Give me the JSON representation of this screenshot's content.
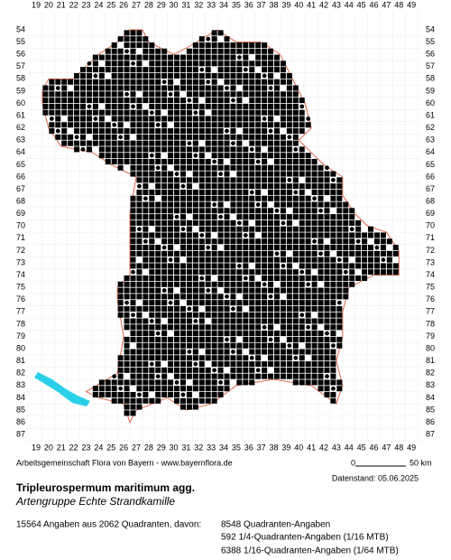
{
  "map": {
    "columns": [
      19,
      20,
      21,
      22,
      23,
      24,
      25,
      26,
      27,
      28,
      29,
      30,
      31,
      32,
      33,
      34,
      35,
      36,
      37,
      38,
      39,
      40,
      41,
      42,
      43,
      44,
      45,
      46,
      47,
      48,
      49
    ],
    "rows": [
      54,
      55,
      56,
      57,
      58,
      59,
      60,
      61,
      62,
      63,
      64,
      65,
      66,
      67,
      68,
      69,
      70,
      71,
      72,
      73,
      74,
      75,
      76,
      77,
      78,
      79,
      80,
      81,
      82,
      83,
      84,
      85,
      86,
      87
    ]
  },
  "footer": {
    "credit": "Arbeitsgemeinschaft Flora von Bayern - www.bayernflora.de",
    "scale_start": "0",
    "scale_end": "50 km",
    "date": "Datenstand: 05.06.2025",
    "title": "Tripleurospermum maritimum agg.",
    "subtitle": "Artengruppe Echte Strandkamille",
    "summary": "15564 Angaben aus 2062 Quadranten, davon:",
    "counts": [
      "8548 Quadranten-Angaben",
      "592 1/4-Quadranten-Angaben (1/16 MTB)",
      "6388 1/16-Quadranten-Angaben (1/64 MTB)"
    ]
  }
}
